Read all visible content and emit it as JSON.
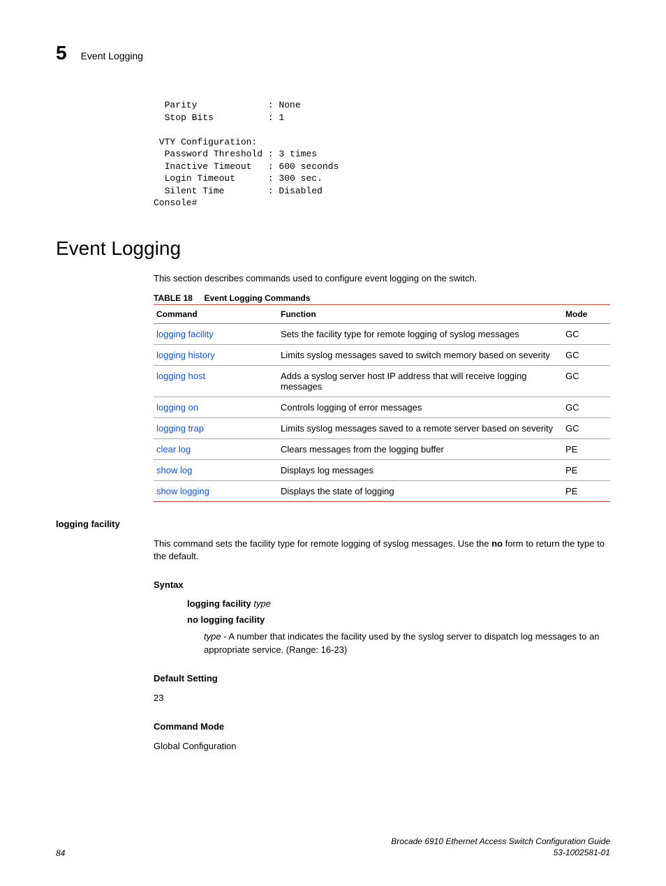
{
  "header": {
    "chapter_num": "5",
    "chapter_title": "Event Logging"
  },
  "code": "  Parity             : None\n  Stop Bits          : 1\n\n VTY Configuration:\n  Password Threshold : 3 times\n  Inactive Timeout   : 600 seconds\n  Login Timeout      : 300 sec.\n  Silent Time        : Disabled\nConsole#",
  "section_title": "Event Logging",
  "section_desc": "This section describes commands used to configure event logging on the switch.",
  "table": {
    "label": "TABLE 18",
    "caption": "Event Logging Commands",
    "columns": [
      "Command",
      "Function",
      "Mode"
    ],
    "rows": [
      {
        "cmd": "logging facility",
        "func": "Sets the facility type for remote logging of syslog messages",
        "mode": "GC"
      },
      {
        "cmd": "logging history",
        "func": "Limits syslog messages saved to switch memory based on severity",
        "mode": "GC"
      },
      {
        "cmd": "logging host",
        "func": "Adds a syslog server host IP address that will receive logging messages",
        "mode": "GC"
      },
      {
        "cmd": "logging on",
        "func": "Controls logging of error messages",
        "mode": "GC"
      },
      {
        "cmd": "logging trap",
        "func": "Limits syslog messages saved to a remote server based on severity",
        "mode": "GC"
      },
      {
        "cmd": "clear log",
        "func": "Clears messages from the logging buffer",
        "mode": "PE"
      },
      {
        "cmd": "show log",
        "func": "Displays log messages",
        "mode": "PE"
      },
      {
        "cmd": "show logging",
        "func": "Displays the state of logging",
        "mode": "PE"
      }
    ]
  },
  "cmd_section": {
    "name": "logging facility",
    "desc_pre": "This command sets the facility type for remote logging of syslog messages. Use the ",
    "desc_bold": "no",
    "desc_post": " form to return the type to the default.",
    "syntax_label": "Syntax",
    "syntax1_bold": "logging facility",
    "syntax1_ital": "type",
    "syntax2": "no logging facility",
    "param_ital": "type",
    "param_desc": " - A number that indicates the facility used by the syslog server to dispatch log messages to an appropriate service. (Range: 16-23)",
    "default_label": "Default Setting",
    "default_val": "23",
    "mode_label": "Command Mode",
    "mode_val": "Global Configuration"
  },
  "footer": {
    "page": "84",
    "title": "Brocade 6910 Ethernet Access Switch Configuration Guide",
    "docnum": "53-1002581-01"
  }
}
